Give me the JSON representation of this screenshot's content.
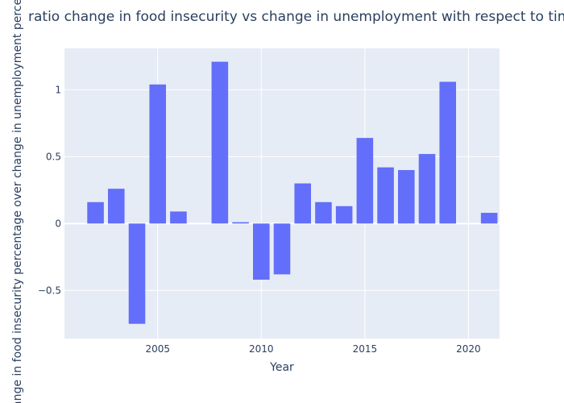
{
  "chart_data": {
    "type": "bar",
    "title": "ratio change in food insecurity vs change in unemployment with respect to time",
    "xlabel": "Year",
    "ylabel": "change in food insecurity percentage over change in unemployment percentage",
    "x": [
      2002,
      2003,
      2004,
      2005,
      2006,
      2007,
      2008,
      2009,
      2010,
      2011,
      2012,
      2013,
      2014,
      2015,
      2016,
      2017,
      2018,
      2019,
      2020,
      2021
    ],
    "values": [
      0.16,
      0.26,
      -0.75,
      1.04,
      0.09,
      0.0,
      1.21,
      0.01,
      -0.42,
      -0.38,
      0.3,
      0.16,
      0.13,
      0.64,
      0.42,
      0.4,
      0.52,
      1.06,
      0.0,
      0.08
    ],
    "xlim": [
      2000.5,
      2021.5
    ],
    "ylim": [
      -0.86,
      1.31
    ],
    "xticks": [
      2005,
      2010,
      2015,
      2020
    ],
    "yticks": [
      -0.5,
      0,
      0.5,
      1
    ],
    "ytick_labels": [
      "−0.5",
      "0",
      "0.5",
      "1"
    ],
    "grid": true,
    "colors": {
      "bar": "#636efa",
      "plot_bg": "#e5ecf6",
      "grid": "#ffffff",
      "text": "#2a3f5f"
    }
  }
}
